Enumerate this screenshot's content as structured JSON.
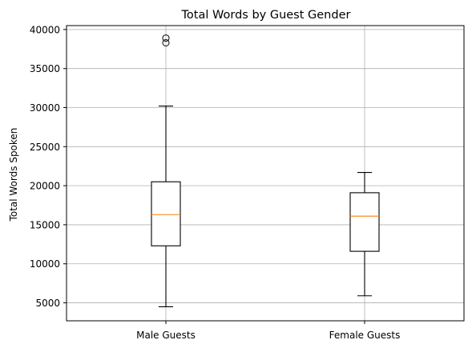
{
  "chart_data": {
    "type": "box",
    "title": "Total Words by Guest Gender",
    "xlabel": "",
    "ylabel": "Total Words Spoken",
    "ylim": [
      2700,
      40500
    ],
    "yticks": [
      5000,
      10000,
      15000,
      20000,
      25000,
      30000,
      35000,
      40000
    ],
    "grid": true,
    "categories": [
      "Male Guests",
      "Female Guests"
    ],
    "series": [
      {
        "category": "Male Guests",
        "whisker_low": 4500,
        "q1": 12300,
        "median": 16300,
        "q3": 20500,
        "whisker_high": 30200,
        "outliers": [
          38300,
          38900
        ]
      },
      {
        "category": "Female Guests",
        "whisker_low": 5900,
        "q1": 11600,
        "median": 16100,
        "q3": 19100,
        "whisker_high": 21700,
        "outliers": []
      }
    ],
    "colors": {
      "box": "#000000",
      "median": "#ff7f0e",
      "grid": "#b0b0b0"
    }
  }
}
